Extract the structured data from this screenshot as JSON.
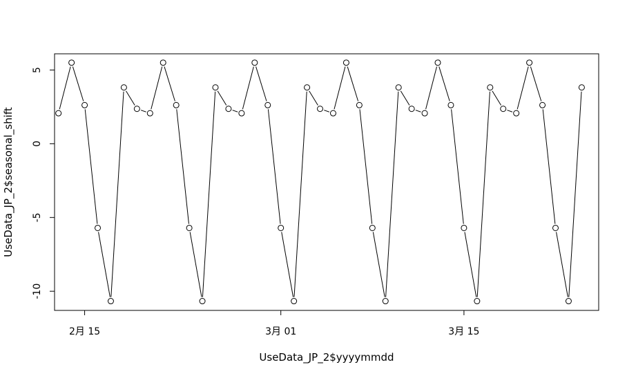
{
  "chart_data": {
    "type": "line",
    "marker": "open-circle",
    "xlabel": "UseData_JP_2$yyyymmdd",
    "ylabel": "UseData_JP_2$seasonal_shift",
    "x_start": "2月 13",
    "x_ticks": [
      {
        "label": "2月 15",
        "value": 2
      },
      {
        "label": "3月 01",
        "value": 17
      },
      {
        "label": "3月 15",
        "value": 31
      }
    ],
    "y_ticks": [
      5,
      0,
      -5,
      -10
    ],
    "xlim": [
      -0.3,
      41.3
    ],
    "ylim": [
      -11.3,
      6.1
    ],
    "values": [
      2.07,
      5.5,
      2.62,
      -5.71,
      -10.67,
      3.82,
      2.37,
      2.07,
      5.5,
      2.62,
      -5.71,
      -10.67,
      3.82,
      2.37,
      2.07,
      5.5,
      2.62,
      -5.71,
      -10.67,
      3.82,
      2.37,
      2.07,
      5.5,
      2.62,
      -5.71,
      -10.67,
      3.82,
      2.37,
      2.07,
      5.5,
      2.62,
      -5.71,
      -10.67,
      3.82,
      2.37,
      2.07,
      5.5,
      2.62,
      -5.71,
      -10.67,
      3.82
    ]
  }
}
